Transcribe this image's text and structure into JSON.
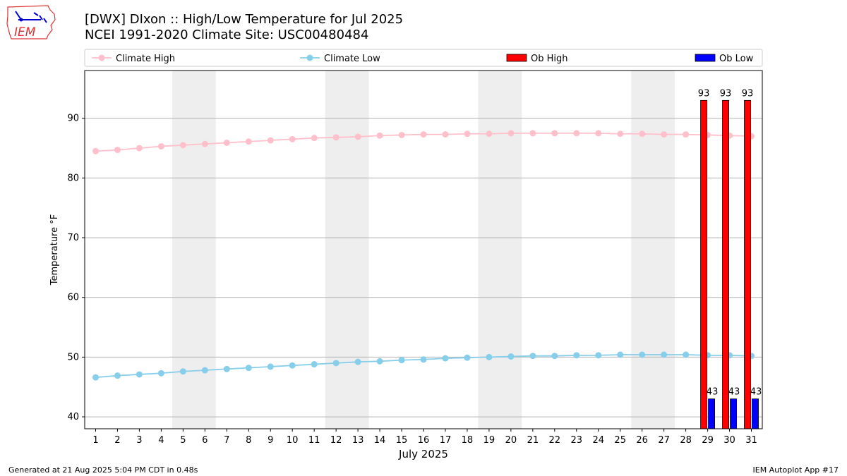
{
  "header": {
    "title_line1": "[DWX] DIxon :: High/Low Temperature for Jul 2025",
    "title_line2": "NCEI 1991-2020 Climate Site: USC00480484"
  },
  "logo": {
    "text": "IEM",
    "icon": "iowa-state-outline-logo"
  },
  "footer": {
    "generated": "Generated at 21 Aug 2025 5:04 PM CDT in 0.48s",
    "app": "IEM Autoplot App #17"
  },
  "chart_data": {
    "type": "bar",
    "xlabel": "July 2025",
    "ylabel": "Temperature °F",
    "xlim": [
      0.5,
      31.5
    ],
    "ylim": [
      38,
      98
    ],
    "yticks": [
      40,
      50,
      60,
      70,
      80,
      90
    ],
    "days": [
      1,
      2,
      3,
      4,
      5,
      6,
      7,
      8,
      9,
      10,
      11,
      12,
      13,
      14,
      15,
      16,
      17,
      18,
      19,
      20,
      21,
      22,
      23,
      24,
      25,
      26,
      27,
      28,
      29,
      30,
      31
    ],
    "weekend_shading": [
      [
        4.5,
        6.5
      ],
      [
        11.5,
        13.5
      ],
      [
        18.5,
        20.5
      ],
      [
        25.5,
        27.5
      ]
    ],
    "grid": "horizontal",
    "legend": {
      "placement": "top",
      "entries": [
        {
          "label": "Climate High",
          "kind": "line",
          "color": "#ffc0cb"
        },
        {
          "label": "Climate Low",
          "kind": "line",
          "color": "#87ceeb"
        },
        {
          "label": "Ob High",
          "kind": "bar",
          "color": "#ff0000"
        },
        {
          "label": "Ob Low",
          "kind": "bar",
          "color": "#0000ff"
        }
      ]
    },
    "series": [
      {
        "name": "Climate High",
        "kind": "line",
        "color": "#ffc0cb",
        "values": [
          84.5,
          84.7,
          85.0,
          85.3,
          85.5,
          85.7,
          85.9,
          86.1,
          86.3,
          86.5,
          86.7,
          86.8,
          86.9,
          87.1,
          87.2,
          87.3,
          87.3,
          87.4,
          87.4,
          87.5,
          87.5,
          87.5,
          87.5,
          87.5,
          87.4,
          87.4,
          87.3,
          87.3,
          87.2,
          87.1,
          87.0
        ]
      },
      {
        "name": "Climate Low",
        "kind": "line",
        "color": "#87ceeb",
        "values": [
          46.6,
          46.9,
          47.1,
          47.3,
          47.6,
          47.8,
          48.0,
          48.2,
          48.4,
          48.6,
          48.8,
          49.0,
          49.2,
          49.3,
          49.5,
          49.6,
          49.8,
          49.9,
          50.0,
          50.1,
          50.2,
          50.2,
          50.3,
          50.3,
          50.4,
          50.4,
          50.4,
          50.4,
          50.3,
          50.3,
          50.2
        ]
      },
      {
        "name": "Ob High",
        "kind": "bar",
        "color": "#ff0000",
        "x": [
          29,
          30,
          31
        ],
        "values": [
          93,
          93,
          93
        ],
        "labels": [
          "93",
          "93",
          "93"
        ]
      },
      {
        "name": "Ob Low",
        "kind": "bar",
        "color": "#0000ff",
        "x": [
          29,
          30,
          31
        ],
        "values": [
          43,
          43,
          43
        ],
        "labels": [
          "43",
          "43",
          "43"
        ]
      }
    ]
  }
}
